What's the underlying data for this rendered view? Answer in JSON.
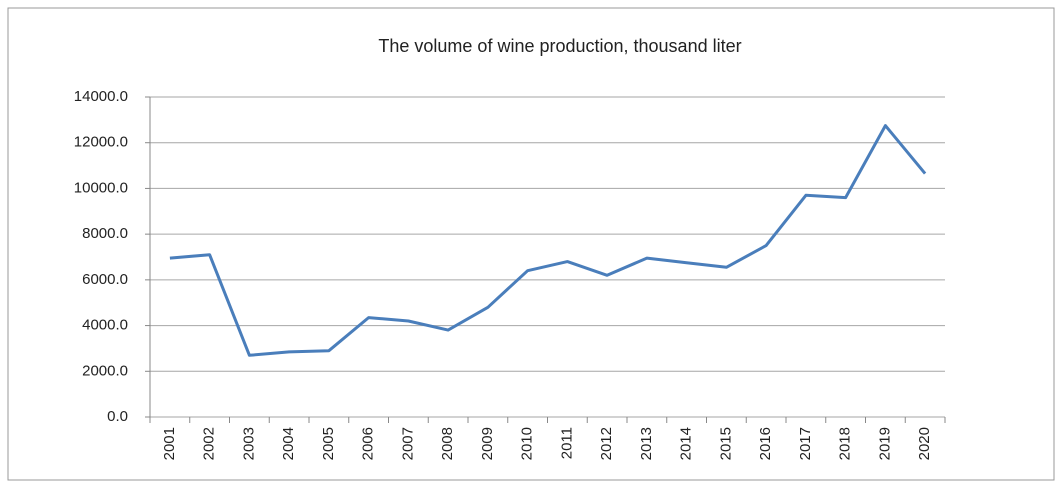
{
  "chart_data": {
    "type": "line",
    "title": "The volume of wine production, thousand liter",
    "categories": [
      "2001",
      "2002",
      "2003",
      "2004",
      "2005",
      "2006",
      "2007",
      "2008",
      "2009",
      "2010",
      "2011",
      "2012",
      "2013",
      "2014",
      "2015",
      "2016",
      "2017",
      "2018",
      "2019",
      "2020"
    ],
    "values": [
      6950,
      7100,
      2700,
      2850,
      2900,
      4350,
      4200,
      3800,
      4800,
      6400,
      6800,
      6200,
      6950,
      6750,
      6550,
      7500,
      9700,
      9600,
      12750,
      10650
    ],
    "color": "#4a7ebb",
    "ylim": [
      0,
      14000
    ],
    "yticks": [
      {
        "value": 0,
        "label": "0.0"
      },
      {
        "value": 2000,
        "label": "2000.0"
      },
      {
        "value": 4000,
        "label": "4000.0"
      },
      {
        "value": 6000,
        "label": "6000.0"
      },
      {
        "value": 8000,
        "label": "8000.0"
      },
      {
        "value": 10000,
        "label": "10000.0"
      },
      {
        "value": 12000,
        "label": "12000.0"
      },
      {
        "value": 14000,
        "label": "14000.0"
      }
    ],
    "grid": true
  }
}
